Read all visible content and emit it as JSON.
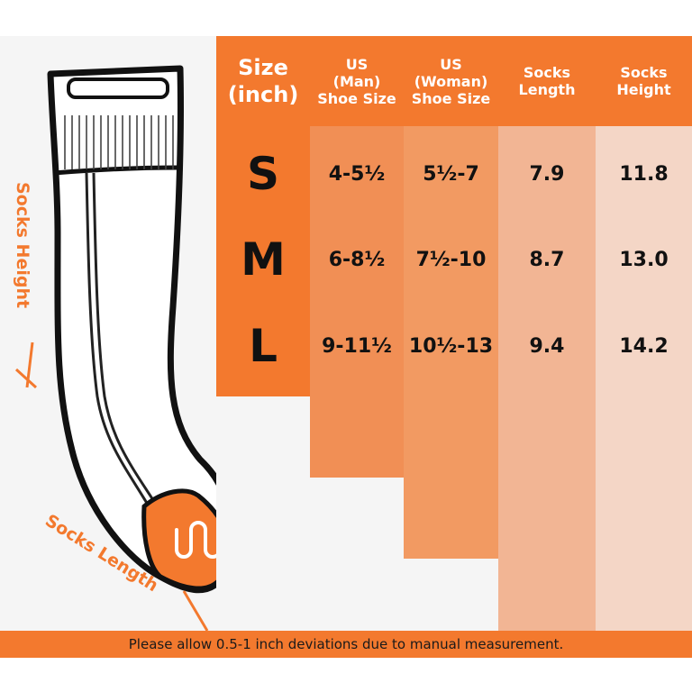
{
  "headers": {
    "size": "Size\n(inch)",
    "us_man": "US\n(Man)\nShoe Size",
    "us_woman": "US\n(Woman)\nShoe Size",
    "socks_length": "Socks\nLength",
    "socks_height": "Socks\nHeight"
  },
  "rows": [
    {
      "size": "S",
      "man": "4-5½",
      "woman": "5½-7",
      "length": "7.9",
      "height": "11.8"
    },
    {
      "size": "M",
      "man": "6-8½",
      "woman": "7½-10",
      "length": "8.7",
      "height": "13.0"
    },
    {
      "size": "L",
      "man": "9-11½",
      "woman": "10½-13",
      "length": "9.4",
      "height": "14.2"
    }
  ],
  "labels": {
    "socks_height": "Socks Height",
    "socks_length": "Socks Length"
  },
  "footer": "Please allow 0.5-1 inch deviations due to manual measurement.",
  "colors": {
    "orange": "#f3792e",
    "col_man": "#f18f55",
    "col_woman": "#f29a62",
    "col_length": "#f2b594",
    "col_height": "#f4d6c6",
    "background": "#f5f5f5"
  },
  "icons": {
    "sock": "sock-illustration"
  }
}
